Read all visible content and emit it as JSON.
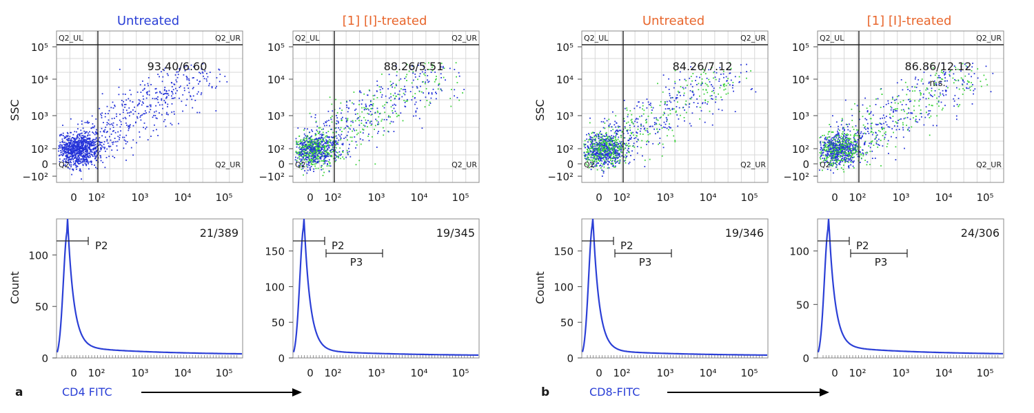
{
  "colors": {
    "untreated_title": "#2a3fd6",
    "treated_title": "#e8662c",
    "dots_blue": "#2432d8",
    "dots_green": "#3bd23b",
    "curve": "#2b3fd6",
    "axis": "#444444",
    "grid": "#d7d7d7",
    "gate_line": "#222222",
    "label": "#1a1a1a",
    "footer_blue": "#2a3fd6"
  },
  "panels": [
    {
      "id": "a",
      "letter": "a",
      "footer_label": "CD4 FITC",
      "column_titles": [
        "Untreated",
        "[1] [I]-treated"
      ],
      "scatter_ylabel": "SSC",
      "histogram_ylabel": "Count",
      "scatter_ticks_y": [
        "10⁵",
        "10⁴",
        "10³",
        "10²",
        "0",
        "−10²"
      ],
      "scatter_ticks_x": [
        "0",
        "10²",
        "10³",
        "10⁴",
        "10⁵"
      ],
      "hist_ticks_x": [
        "0",
        "10²",
        "10³",
        "10⁴",
        "10⁵"
      ]
    },
    {
      "id": "b",
      "letter": "b",
      "footer_label": "CD8-FITC",
      "column_titles": [
        "Untreated",
        "[1] [I]-treated"
      ],
      "scatter_ylabel": "SSC",
      "histogram_ylabel": "Count",
      "scatter_ticks_y": [
        "10⁵",
        "10⁴",
        "10³",
        "10²",
        "0",
        "−10²"
      ],
      "scatter_ticks_x": [
        "0",
        "10²",
        "10³",
        "10⁴",
        "10⁵"
      ],
      "hist_ticks_x": [
        "0",
        "10²",
        "10³",
        "10⁴",
        "10⁵"
      ]
    }
  ],
  "chart_data": [
    {
      "type": "scatter",
      "panel": "a",
      "title": "Untreated",
      "ylabel": "SSC",
      "quadrant_labels": [
        "Q2_UL",
        "Q2_UR",
        "Q2",
        "Q2_UR"
      ],
      "annotation": "93.40/6.60",
      "note": "",
      "series_colors": [
        "blue"
      ]
    },
    {
      "type": "scatter",
      "panel": "a",
      "title": "[1] [I]-treated",
      "ylabel": "",
      "quadrant_labels": [
        "Q2_UL",
        "Q2_UR",
        "Q2",
        "Q2_UR"
      ],
      "annotation": "88.26/5.51",
      "note": "",
      "series_colors": [
        "blue",
        "green"
      ]
    },
    {
      "type": "scatter",
      "panel": "b",
      "title": "Untreated",
      "ylabel": "SSC",
      "quadrant_labels": [
        "Q2_UL",
        "Q2_UR",
        "Q2",
        "Q2_UR"
      ],
      "annotation": "84.26/7.12",
      "note": "",
      "series_colors": [
        "blue",
        "green"
      ]
    },
    {
      "type": "scatter",
      "panel": "b",
      "title": "[1] [I]-treated",
      "ylabel": "",
      "quadrant_labels": [
        "Q2_UL",
        "Q2_UR",
        "Q2",
        "Q2_UR"
      ],
      "annotation": "86.86/12.12",
      "note": "n.s.",
      "series_colors": [
        "blue",
        "green"
      ]
    },
    {
      "type": "line",
      "panel": "a",
      "ylabel": "Count",
      "y_ticks": [
        0,
        50,
        100
      ],
      "ylim": [
        0,
        135
      ],
      "peak": 124,
      "gates": [
        "P2"
      ],
      "annotation": "21/389"
    },
    {
      "type": "line",
      "panel": "a",
      "ylabel": "",
      "y_ticks": [
        0,
        50,
        100,
        150
      ],
      "ylim": [
        0,
        195
      ],
      "peak": 185,
      "gates": [
        "P2",
        "P3"
      ],
      "annotation": "19/345"
    },
    {
      "type": "line",
      "panel": "b",
      "ylabel": "Count",
      "y_ticks": [
        0,
        50,
        100,
        150
      ],
      "ylim": [
        0,
        195
      ],
      "peak": 188,
      "gates": [
        "P2",
        "P3"
      ],
      "annotation": "19/346"
    },
    {
      "type": "line",
      "panel": "b",
      "ylabel": "",
      "y_ticks": [
        0,
        50,
        100
      ],
      "ylim": [
        0,
        130
      ],
      "peak": 122,
      "gates": [
        "P2",
        "P3"
      ],
      "annotation": "24/306"
    }
  ]
}
